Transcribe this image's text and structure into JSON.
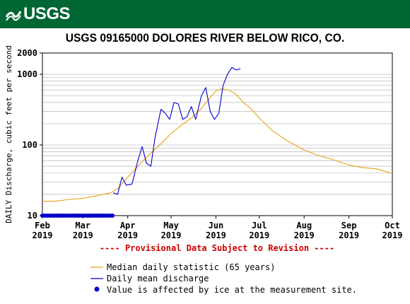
{
  "header": {
    "logo_text": "USGS",
    "brand_color": "#006633",
    "logo_icon": "usgs-wave-icon"
  },
  "chart_data": {
    "type": "line",
    "title": "USGS 09165000 DOLORES RIVER BELOW RICO, CO.",
    "ylabel": "DAILY Discharge, cubic feet per second",
    "yscale": "log",
    "ylim": [
      10,
      2000
    ],
    "yticks": [
      {
        "value": 10,
        "label": "10"
      },
      {
        "value": 100,
        "label": "100"
      },
      {
        "value": 1000,
        "label": "1000"
      },
      {
        "value": 2000,
        "label": "2000"
      }
    ],
    "xlim": [
      "2019-02-01",
      "2019-10-01"
    ],
    "xticks": [
      {
        "date": "2019-02-01",
        "month": "Feb",
        "year": "2019"
      },
      {
        "date": "2019-03-01",
        "month": "Mar",
        "year": "2019"
      },
      {
        "date": "2019-04-01",
        "month": "Apr",
        "year": "2019"
      },
      {
        "date": "2019-05-01",
        "month": "May",
        "year": "2019"
      },
      {
        "date": "2019-06-01",
        "month": "Jun",
        "year": "2019"
      },
      {
        "date": "2019-07-01",
        "month": "Jul",
        "year": "2019"
      },
      {
        "date": "2019-08-01",
        "month": "Aug",
        "year": "2019"
      },
      {
        "date": "2019-09-01",
        "month": "Sep",
        "year": "2019"
      },
      {
        "date": "2019-10-01",
        "month": "Oct",
        "year": "2019"
      }
    ],
    "grid": true,
    "provisional_note": "---- Provisional Data Subject to Revision ----",
    "provisional_color": "#cc0000",
    "series": [
      {
        "name": "Median daily statistic (65 years)",
        "color": "#e8a317",
        "points": [
          [
            "2019-02-01",
            16
          ],
          [
            "2019-02-10",
            16
          ],
          [
            "2019-02-20",
            17
          ],
          [
            "2019-03-01",
            17.5
          ],
          [
            "2019-03-10",
            19
          ],
          [
            "2019-03-20",
            21
          ],
          [
            "2019-03-25",
            24
          ],
          [
            "2019-04-01",
            35
          ],
          [
            "2019-04-08",
            50
          ],
          [
            "2019-04-15",
            70
          ],
          [
            "2019-04-22",
            95
          ],
          [
            "2019-05-01",
            145
          ],
          [
            "2019-05-08",
            190
          ],
          [
            "2019-05-15",
            240
          ],
          [
            "2019-05-22",
            330
          ],
          [
            "2019-05-28",
            470
          ],
          [
            "2019-06-01",
            580
          ],
          [
            "2019-06-05",
            620
          ],
          [
            "2019-06-10",
            600
          ],
          [
            "2019-06-15",
            520
          ],
          [
            "2019-06-20",
            400
          ],
          [
            "2019-06-25",
            330
          ],
          [
            "2019-07-01",
            240
          ],
          [
            "2019-07-10",
            160
          ],
          [
            "2019-07-20",
            115
          ],
          [
            "2019-08-01",
            85
          ],
          [
            "2019-08-10",
            72
          ],
          [
            "2019-08-20",
            63
          ],
          [
            "2019-09-01",
            52
          ],
          [
            "2019-09-10",
            48
          ],
          [
            "2019-09-20",
            46
          ],
          [
            "2019-09-30",
            40
          ]
        ]
      },
      {
        "name": "Daily mean discharge",
        "color": "#0000cc",
        "points": [
          [
            "2019-03-22",
            21
          ],
          [
            "2019-03-25",
            20
          ],
          [
            "2019-03-28",
            35
          ],
          [
            "2019-03-31",
            27
          ],
          [
            "2019-04-04",
            28
          ],
          [
            "2019-04-08",
            60
          ],
          [
            "2019-04-11",
            95
          ],
          [
            "2019-04-14",
            55
          ],
          [
            "2019-04-17",
            50
          ],
          [
            "2019-04-20",
            130
          ],
          [
            "2019-04-24",
            320
          ],
          [
            "2019-04-27",
            280
          ],
          [
            "2019-04-30",
            230
          ],
          [
            "2019-05-03",
            400
          ],
          [
            "2019-05-06",
            380
          ],
          [
            "2019-05-09",
            230
          ],
          [
            "2019-05-12",
            250
          ],
          [
            "2019-05-15",
            350
          ],
          [
            "2019-05-18",
            230
          ],
          [
            "2019-05-22",
            500
          ],
          [
            "2019-05-25",
            650
          ],
          [
            "2019-05-28",
            300
          ],
          [
            "2019-05-31",
            230
          ],
          [
            "2019-06-03",
            280
          ],
          [
            "2019-06-06",
            700
          ],
          [
            "2019-06-09",
            1000
          ],
          [
            "2019-06-12",
            1250
          ],
          [
            "2019-06-15",
            1150
          ],
          [
            "2019-06-18",
            1200
          ]
        ]
      }
    ],
    "ice_markers": {
      "label": "Value is affected by ice at the measurement site.",
      "color": "#0000cc",
      "value": 10,
      "start": "2019-02-01",
      "end": "2019-03-22"
    }
  }
}
